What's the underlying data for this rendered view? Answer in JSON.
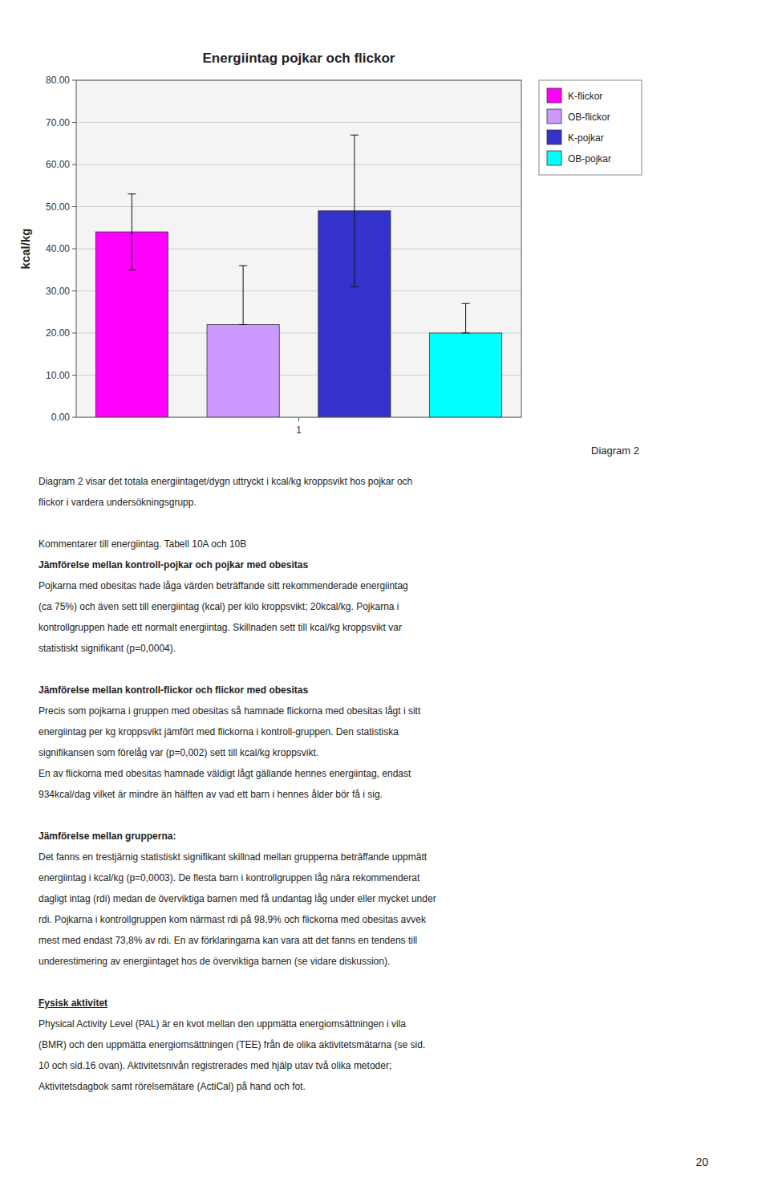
{
  "chart_data": {
    "type": "bar",
    "title": "Energiintag pojkar och flickor",
    "ylabel": "kcal/kg",
    "categories": [
      "1"
    ],
    "series": [
      {
        "name": "K-flickor",
        "color": "#FF00FF",
        "values": [
          44.0
        ],
        "error_upper": [
          9.0
        ],
        "error_lower": [
          9.0
        ]
      },
      {
        "name": "OB-flickor",
        "color": "#CC99FF",
        "values": [
          22.0
        ],
        "error_upper": [
          14.0
        ],
        "error_lower": [
          0.0
        ]
      },
      {
        "name": "K-pojkar",
        "color": "#3333CC",
        "values": [
          49.0
        ],
        "error_upper": [
          18.0
        ],
        "error_lower": [
          18.0
        ]
      },
      {
        "name": "OB-pojkar",
        "color": "#00FFFF",
        "values": [
          20.0
        ],
        "error_upper": [
          7.0
        ],
        "error_lower": [
          0.0
        ]
      }
    ],
    "ylim": [
      0,
      80
    ],
    "yticks": [
      {
        "value": 0,
        "label": "0.00"
      },
      {
        "value": 10,
        "label": "10.00"
      },
      {
        "value": 20,
        "label": "20.00"
      },
      {
        "value": 30,
        "label": "30.00"
      },
      {
        "value": 40,
        "label": "40.00"
      },
      {
        "value": 50,
        "label": "50.00"
      },
      {
        "value": 60,
        "label": "60.00"
      },
      {
        "value": 70,
        "label": "70.00"
      },
      {
        "value": 80,
        "label": "80.00"
      }
    ],
    "grid": true,
    "legend": "right",
    "annotations": [
      "Diagram 2"
    ]
  },
  "body_text": [
    [
      {
        "text": "Diagram 2 visar det totala energiintaget/dygn uttryckt i kcal/kg kroppsvikt hos pojkar och",
        "bold": false,
        "underline": false
      },
      {
        "text": "flickor i vardera undersökningsgrupp.",
        "bold": false,
        "underline": false
      }
    ],
    [
      {
        "text": "Kommentarer till energiintag. Tabell 10A och 10B",
        "bold": false,
        "underline": false
      },
      {
        "text": "Jämförelse mellan kontroll-pojkar och pojkar med obesitas",
        "bold": true,
        "underline": false
      },
      {
        "text": "Pojkarna med obesitas hade låga värden beträffande sitt rekommenderade energiintag",
        "bold": false,
        "underline": false
      },
      {
        "text": "(ca 75%) och även sett till energiintag (kcal) per kilo kroppsvikt; 20kcal/kg. Pojkarna i",
        "bold": false,
        "underline": false
      },
      {
        "text": "kontrollgruppen hade ett normalt energiintag. Skillnaden sett till kcal/kg kroppsvikt var",
        "bold": false,
        "underline": false
      },
      {
        "text": "statistiskt signifikant (p=0,0004).",
        "bold": false,
        "underline": false
      }
    ],
    [
      {
        "text": "Jämförelse mellan kontroll-flickor och flickor med obesitas",
        "bold": true,
        "underline": false
      },
      {
        "text": "Precis som pojkarna i gruppen med obesitas så hamnade flickorna med obesitas lågt i sitt",
        "bold": false,
        "underline": false
      },
      {
        "text": "energiintag per kg kroppsvikt jämfört med flickorna i kontroll-gruppen. Den statistiska",
        "bold": false,
        "underline": false
      },
      {
        "text": "signifikansen som förelåg var (p=0,002) sett till kcal/kg kroppsvikt.",
        "bold": false,
        "underline": false
      },
      {
        "text": "En av flickorna med obesitas hamnade väldigt lågt gällande hennes energiintag, endast",
        "bold": false,
        "underline": false
      },
      {
        "text": "934kcal/dag vilket är mindre än hälften av vad ett barn i hennes ålder bör få i sig.",
        "bold": false,
        "underline": false
      }
    ],
    [
      {
        "text": "Jämförelse mellan grupperna:",
        "bold": true,
        "underline": false
      },
      {
        "text": "Det fanns en trestjärnig statistiskt signifikant skillnad mellan grupperna beträffande uppmätt",
        "bold": false,
        "underline": false
      },
      {
        "text": "energiintag i kcal/kg (p=0,0003). De flesta barn i kontrollgruppen låg nära rekommenderat",
        "bold": false,
        "underline": false
      },
      {
        "text": "dagligt intag (rdi) medan de överviktiga barnen med få undantag låg under eller mycket under",
        "bold": false,
        "underline": false
      },
      {
        "text": "rdi. Pojkarna i kontrollgruppen kom närmast rdi på 98,9% och flickorna med obesitas avvek",
        "bold": false,
        "underline": false
      },
      {
        "text": "mest med endast 73,8% av rdi. En av förklaringarna kan vara att det fanns en tendens till",
        "bold": false,
        "underline": false
      },
      {
        "text": "underestimering av energiintaget hos de överviktiga barnen (se vidare diskussion).",
        "bold": false,
        "underline": false
      }
    ],
    [
      {
        "text": "Fysisk aktivitet",
        "bold": true,
        "underline": true
      },
      {
        "text": "Physical Activity Level (PAL) är en kvot mellan den uppmätta energiomsättningen i vila",
        "bold": false,
        "underline": false
      },
      {
        "text": "(BMR) och den uppmätta energiomsättningen (TEE) från de olika aktivitetsmätarna (se sid.",
        "bold": false,
        "underline": false
      },
      {
        "text": "10 och sid.16 ovan). Aktivitetsnivån registrerades med hjälp utav två olika metoder;",
        "bold": false,
        "underline": false
      },
      {
        "text": "Aktivitetsdagbok samt rörelsemätare (ActiCal) på hand och fot.",
        "bold": false,
        "underline": false
      }
    ]
  ],
  "page_number": "20"
}
